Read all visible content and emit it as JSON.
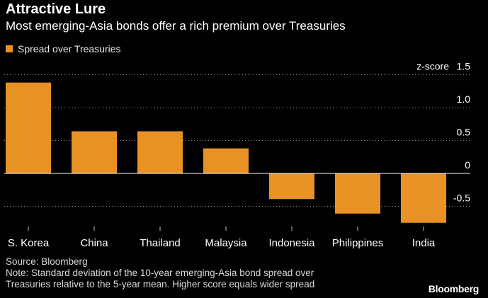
{
  "header": {
    "title": "Attractive Lure",
    "subtitle": "Most emerging-Asia bonds offer a rich premium over Treasuries"
  },
  "legend": {
    "label": "Spread over Treasuries",
    "color": "#e89225"
  },
  "axis_title": "z-score",
  "colors": {
    "background": "#000000",
    "bar": "#e89225",
    "text": "#ffffff",
    "grid": "#8c8c8c"
  },
  "chart_data": {
    "type": "bar",
    "title": "Attractive Lure",
    "subtitle": "Most emerging-Asia bonds offer a rich premium over Treasuries",
    "categories": [
      "S. Korea",
      "China",
      "Thailand",
      "Malaysia",
      "Indonesia",
      "Philippines",
      "India"
    ],
    "series": [
      {
        "name": "Spread over Treasuries",
        "values": [
          1.38,
          0.64,
          0.64,
          0.38,
          -0.39,
          -0.61,
          -0.75
        ]
      }
    ],
    "ylabel": "z-score",
    "ylim": [
      -0.9,
      1.5
    ],
    "yticks": [
      1.5,
      1.0,
      0.5,
      0,
      -0.5
    ],
    "ytick_labels": [
      "1.5",
      "1.0",
      "0.5",
      "0",
      "-0.5"
    ],
    "grid": true,
    "legend_position": "top-left"
  },
  "footer": {
    "source": "Source: Bloomberg",
    "note_line1": "Note: Standard deviation of the 10-year emerging-Asia bond spread over",
    "note_line2": "Treasuries relative to the 5-year mean. Higher score equals wider spread",
    "logo": "Bloomberg"
  }
}
